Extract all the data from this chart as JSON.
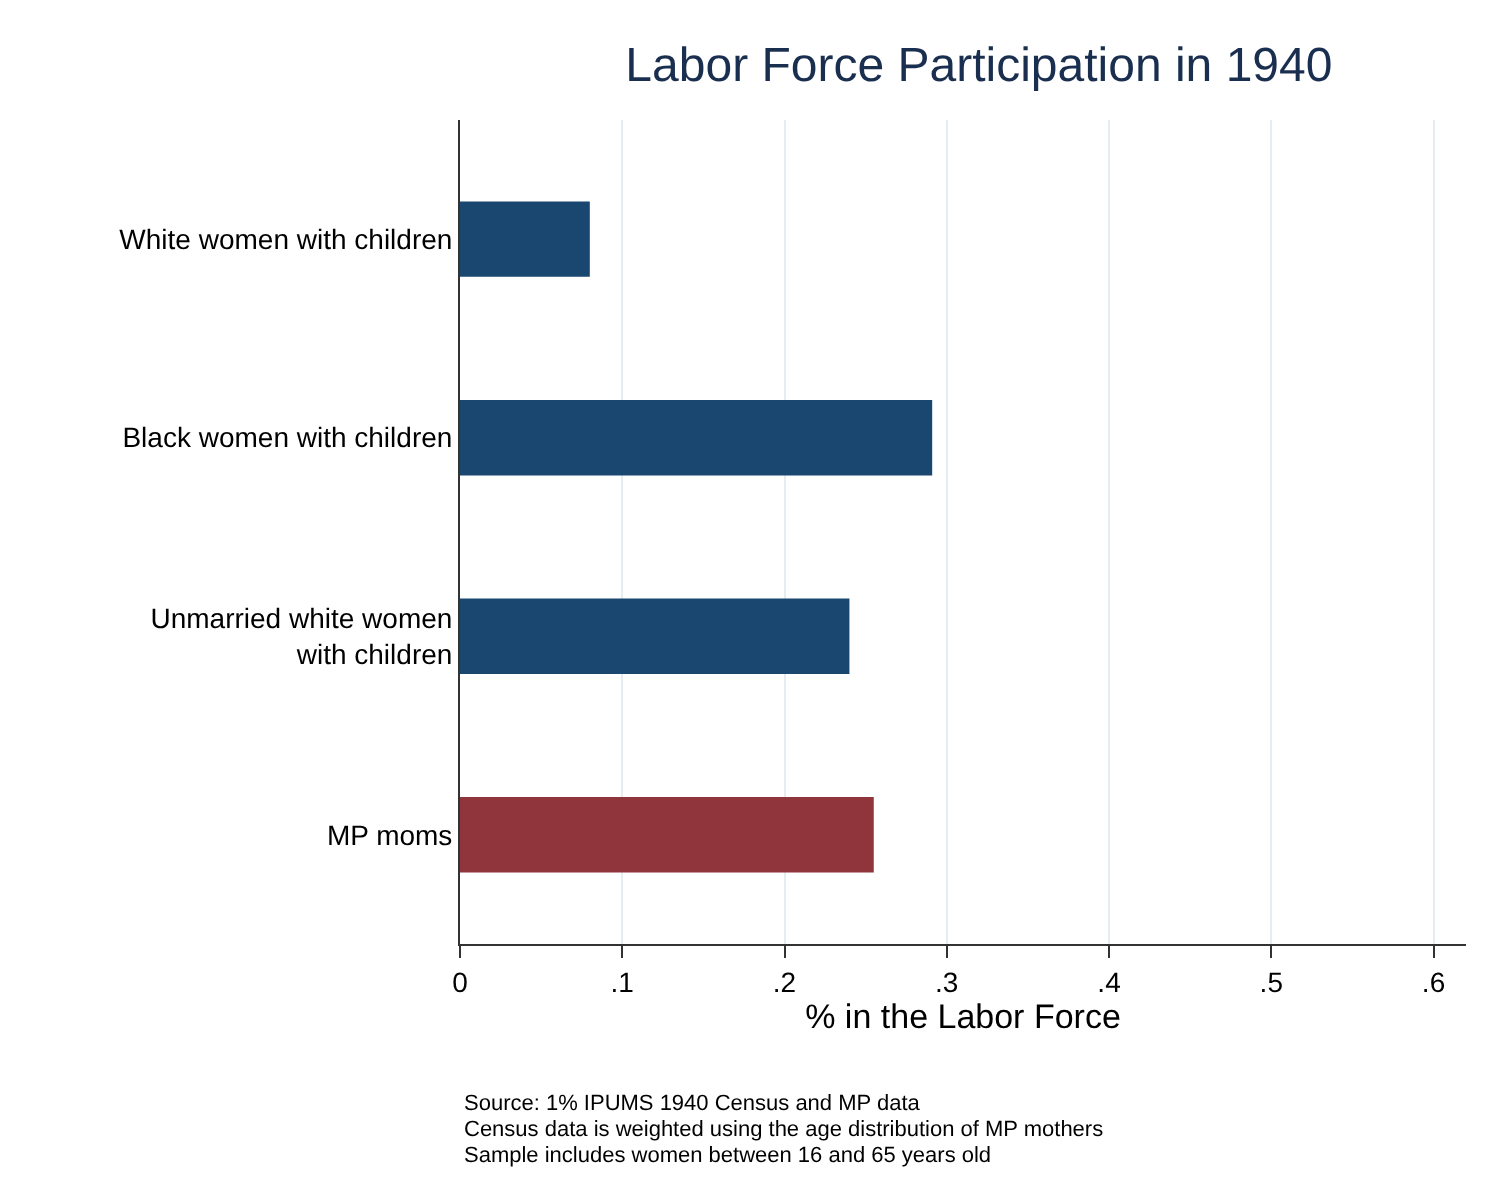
{
  "chart_data": {
    "type": "bar",
    "orientation": "horizontal",
    "title": "Labor Force Participation in 1940",
    "xlabel": "% in the Labor Force",
    "categories": [
      "White women with children",
      "Black women with children",
      "Unmarried white women\nwith children",
      "MP moms"
    ],
    "values": [
      0.08,
      0.291,
      0.24,
      0.255
    ],
    "colors": [
      "#1a476f",
      "#1a476f",
      "#1a476f",
      "#90353b"
    ],
    "xlim": [
      0,
      0.62
    ],
    "xticks": [
      0,
      {
        "value": 0.1,
        "label": ".1"
      },
      {
        "value": 0.2,
        "label": ".2"
      },
      {
        "value": 0.3,
        "label": ".3"
      },
      {
        "value": 0.4,
        "label": ".4"
      },
      {
        "value": 0.5,
        "label": ".5"
      },
      {
        "value": 0.6,
        "label": ".6"
      }
    ],
    "grid": "x",
    "annotations": [
      "Source: 1% IPUMS 1940 Census and MP data",
      "Census data is weighted using the age distribution of MP mothers",
      "Sample includes women between 16 and 65 years old"
    ]
  }
}
